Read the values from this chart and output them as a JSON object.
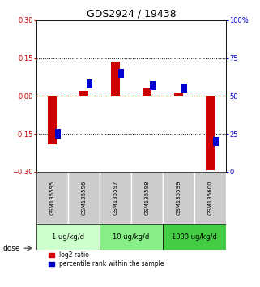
{
  "title": "GDS2924 / 19438",
  "samples": [
    "GSM135595",
    "GSM135596",
    "GSM135597",
    "GSM135598",
    "GSM135599",
    "GSM135600"
  ],
  "log2_ratio": [
    -0.19,
    0.02,
    0.135,
    0.03,
    0.01,
    -0.295
  ],
  "percentile_rank": [
    25,
    58,
    65,
    57,
    55,
    20
  ],
  "left_ylim": [
    -0.3,
    0.3
  ],
  "right_ylim": [
    0,
    100
  ],
  "left_yticks": [
    -0.3,
    -0.15,
    0,
    0.15,
    0.3
  ],
  "right_yticks": [
    0,
    25,
    50,
    75,
    100
  ],
  "right_yticklabels": [
    "0",
    "25",
    "50",
    "75",
    "100%"
  ],
  "hlines": [
    0.15,
    -0.15
  ],
  "red_color": "#cc0000",
  "blue_color": "#0000cc",
  "dose_groups": [
    {
      "label": "1 ug/kg/d",
      "indices": [
        0,
        1
      ],
      "color": "#ccffcc"
    },
    {
      "label": "10 ug/kg/d",
      "indices": [
        2,
        3
      ],
      "color": "#88ee88"
    },
    {
      "label": "1000 ug/kg/d",
      "indices": [
        4,
        5
      ],
      "color": "#44cc44"
    }
  ],
  "dose_label": "dose",
  "legend_red": "log2 ratio",
  "legend_blue": "percentile rank within the sample",
  "sample_box_color": "#cccccc",
  "title_fontsize": 9,
  "tick_fontsize": 6,
  "label_fontsize": 7
}
